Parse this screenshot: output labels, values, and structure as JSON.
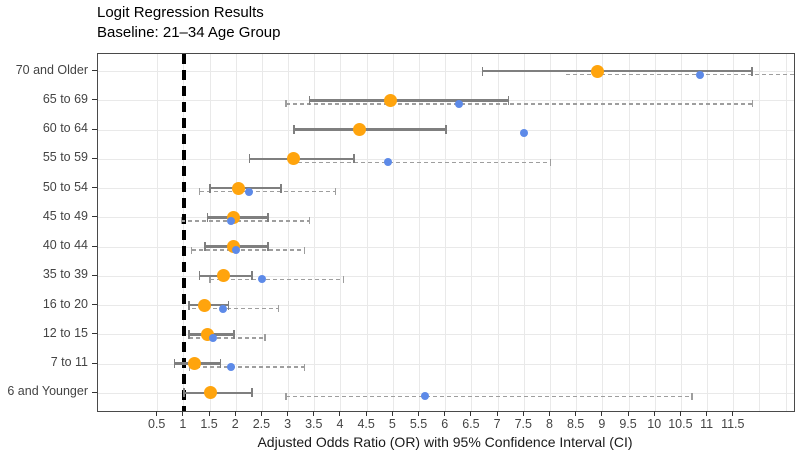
{
  "chart_data": {
    "type": "scatter",
    "variant": "forest-plot-dot-whisker",
    "title": "Logit Regression Results",
    "subtitle": "Baseline: 21–34 Age Group",
    "xlabel": "Adjusted Odds Ratio (OR) with 95% Confidence Interval (CI)",
    "baseline_x": 1,
    "xlim": [
      -0.64,
      12.65
    ],
    "x_ticks": [
      0.5,
      1,
      1.5,
      2,
      2.5,
      3,
      3.5,
      4,
      4.5,
      5,
      5.5,
      6,
      6.5,
      7,
      7.5,
      8,
      8.5,
      9,
      9.5,
      10,
      10.5,
      11,
      11.5
    ],
    "grid_step": 0.5,
    "grid_min": 0.5,
    "grid_max": 12.5,
    "legend": "none",
    "grid": "both",
    "categories": [
      "70 and Older",
      "65 to 69",
      "60 to 64",
      "55 to 59",
      "50 to 54",
      "45 to 49",
      "40 to 44",
      "35 to 39",
      "16 to 20",
      "12 to 15",
      "7 to 11",
      "6 and Younger"
    ],
    "series": [
      {
        "name": "adjusted-or-solid",
        "marker_color": "#ffa40d",
        "bar_color": "#7f7f7f",
        "ci_style": "solid",
        "marker_size": 13,
        "points": [
          {
            "est": 8.9,
            "lo": 6.7,
            "hi": 11.85,
            "cap_left": true,
            "cap_right": true
          },
          {
            "est": 4.95,
            "lo": 3.4,
            "hi": 7.2,
            "cap_left": true,
            "cap_right": true
          },
          {
            "est": 4.35,
            "lo": 3.1,
            "hi": 6.0,
            "cap_left": true,
            "cap_right": true
          },
          {
            "est": 3.1,
            "lo": 2.25,
            "hi": 4.25,
            "cap_left": true,
            "cap_right": true
          },
          {
            "est": 2.05,
            "lo": 1.5,
            "hi": 2.85,
            "cap_left": true,
            "cap_right": true
          },
          {
            "est": 1.95,
            "lo": 1.45,
            "hi": 2.6,
            "cap_left": true,
            "cap_right": true
          },
          {
            "est": 1.95,
            "lo": 1.4,
            "hi": 2.6,
            "cap_left": true,
            "cap_right": true
          },
          {
            "est": 1.75,
            "lo": 1.3,
            "hi": 2.3,
            "cap_left": true,
            "cap_right": true
          },
          {
            "est": 1.4,
            "lo": 1.1,
            "hi": 1.85,
            "cap_left": true,
            "cap_right": true
          },
          {
            "est": 1.45,
            "lo": 1.1,
            "hi": 1.95,
            "cap_left": true,
            "cap_right": true
          },
          {
            "est": 1.2,
            "lo": 0.82,
            "hi": 1.7,
            "cap_left": true,
            "cap_right": true
          },
          {
            "est": 1.5,
            "lo": 1.0,
            "hi": 2.3,
            "cap_left": true,
            "cap_right": true
          }
        ]
      },
      {
        "name": "comparison-or-dashed",
        "marker_color": "#5d8ae8",
        "bar_color": "#9e9e9e",
        "ci_style": "dashed",
        "marker_size": 8,
        "points": [
          {
            "est": 10.85,
            "lo": 8.3,
            "hi": 13.4,
            "cap_left": false,
            "cap_right": false
          },
          {
            "est": 6.25,
            "lo": 2.95,
            "hi": 11.85,
            "cap_left": true,
            "cap_right": true
          },
          {
            "est": 7.5,
            "lo": null,
            "hi": null,
            "cap_left": false,
            "cap_right": false
          },
          {
            "est": 4.9,
            "lo": 3.05,
            "hi": 8.0,
            "cap_left": false,
            "cap_right": true
          },
          {
            "est": 2.25,
            "lo": 1.3,
            "hi": 3.9,
            "cap_left": true,
            "cap_right": true
          },
          {
            "est": 1.9,
            "lo": 0.95,
            "hi": 3.4,
            "cap_left": true,
            "cap_right": true
          },
          {
            "est": 2.0,
            "lo": 1.15,
            "hi": 3.3,
            "cap_left": true,
            "cap_right": true
          },
          {
            "est": 2.5,
            "lo": 1.5,
            "hi": 4.05,
            "cap_left": true,
            "cap_right": true
          },
          {
            "est": 1.75,
            "lo": 1.15,
            "hi": 2.8,
            "cap_left": false,
            "cap_right": true
          },
          {
            "est": 1.55,
            "lo": 1.1,
            "hi": 2.55,
            "cap_left": false,
            "cap_right": true
          },
          {
            "est": 1.9,
            "lo": 1.1,
            "hi": 3.3,
            "cap_left": true,
            "cap_right": true
          },
          {
            "est": 5.6,
            "lo": 2.95,
            "hi": 10.7,
            "cap_left": true,
            "cap_right": true
          }
        ]
      }
    ]
  }
}
